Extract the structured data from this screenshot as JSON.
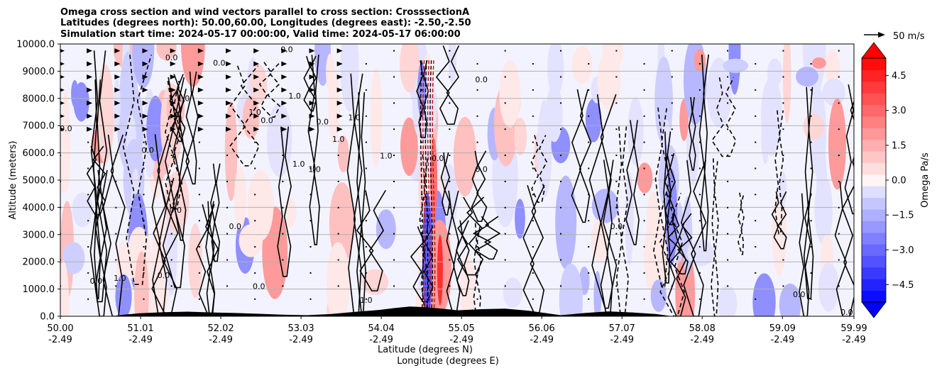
{
  "chart_data": {
    "type": "heatmap",
    "title_lines": [
      "Omega cross section and wind vectors parallel to cross section: CrosssectionA",
      "Latitudes (degrees north): 50.00,60.00, Longitudes (degrees east): -2.50,-2.50",
      "Simulation start time: 2024-05-17 00:00:00, Valid time: 2024-05-17 06:00:00"
    ],
    "ylabel": "Altitude (meters)",
    "xlabel_lines": [
      "Latitude (degrees N)",
      "Longitude (degrees E)"
    ],
    "ylim": [
      0,
      10000
    ],
    "yticks": [
      "0.0",
      "1000.0",
      "2000.0",
      "3000.0",
      "4000.0",
      "5000.0",
      "6000.0",
      "7000.0",
      "8000.0",
      "9000.0",
      "10000.0"
    ],
    "xticks": [
      {
        "lat": "50.00",
        "lon": "-2.49"
      },
      {
        "lat": "51.01",
        "lon": "-2.49"
      },
      {
        "lat": "52.02",
        "lon": "-2.49"
      },
      {
        "lat": "53.03",
        "lon": "-2.49"
      },
      {
        "lat": "54.04",
        "lon": "-2.49"
      },
      {
        "lat": "55.05",
        "lon": "-2.49"
      },
      {
        "lat": "56.06",
        "lon": "-2.49"
      },
      {
        "lat": "57.07",
        "lon": "-2.49"
      },
      {
        "lat": "58.08",
        "lon": "-2.49"
      },
      {
        "lat": "59.09",
        "lon": "-2.49"
      },
      {
        "lat": "59.99",
        "lon": "-2.49"
      }
    ],
    "grid": true,
    "colorbar": {
      "label": "Omega Pa/s",
      "range": [
        -5.25,
        5.25
      ],
      "tick_labels": [
        "4.5",
        "3.0",
        "1.5",
        "0.0",
        "−1.5",
        "−3.0",
        "−4.5"
      ],
      "tick_values": [
        4.5,
        3.0,
        1.5,
        0.0,
        -1.5,
        -3.0,
        -4.5
      ],
      "negative_color": "#0000ff",
      "positive_color": "#ff0000",
      "extend": "both"
    },
    "quiver_key": "50 m/s",
    "contour_labels": [
      {
        "text": "0.0",
        "x": 50.07,
        "y": 6800
      },
      {
        "text": "0.0",
        "x": 50.45,
        "y": 1200
      },
      {
        "text": "1.0",
        "x": 50.75,
        "y": 1300
      },
      {
        "text": "0.0",
        "x": 51.1,
        "y": 6000
      },
      {
        "text": "0.0",
        "x": 51.3,
        "y": 1400
      },
      {
        "text": "0.0",
        "x": 51.45,
        "y": 3800
      },
      {
        "text": "0.0",
        "x": 51.4,
        "y": 9400
      },
      {
        "text": "1.0",
        "x": 51.55,
        "y": 7900
      },
      {
        "text": "0.0",
        "x": 52.0,
        "y": 9200
      },
      {
        "text": "0.0",
        "x": 52.2,
        "y": 3200
      },
      {
        "text": "1.0",
        "x": 52.45,
        "y": 7400
      },
      {
        "text": "0.0",
        "x": 52.5,
        "y": 1000
      },
      {
        "text": "0.0",
        "x": 52.6,
        "y": 7100
      },
      {
        "text": "0.0",
        "x": 52.85,
        "y": 9700
      },
      {
        "text": "1.0",
        "x": 52.95,
        "y": 8000
      },
      {
        "text": "1.0",
        "x": 53.0,
        "y": 5500
      },
      {
        "text": "1.0",
        "x": 53.2,
        "y": 5300
      },
      {
        "text": "0.0",
        "x": 53.3,
        "y": 7050
      },
      {
        "text": "1.0",
        "x": 53.5,
        "y": 6400
      },
      {
        "text": "1.0",
        "x": 53.7,
        "y": 7200
      },
      {
        "text": "1.0",
        "x": 54.1,
        "y": 5800
      },
      {
        "text": "0.0",
        "x": 54.75,
        "y": 5700
      },
      {
        "text": "0.0",
        "x": 55.3,
        "y": 5300
      },
      {
        "text": "1.0",
        "x": 53.85,
        "y": 500
      },
      {
        "text": "0.0",
        "x": 55.3,
        "y": 8600
      },
      {
        "text": "0.0",
        "x": 57.0,
        "y": 3200
      },
      {
        "text": "0.0",
        "x": 59.3,
        "y": 700
      },
      {
        "text": "0.0",
        "x": 59.9,
        "y": 50
      }
    ]
  }
}
